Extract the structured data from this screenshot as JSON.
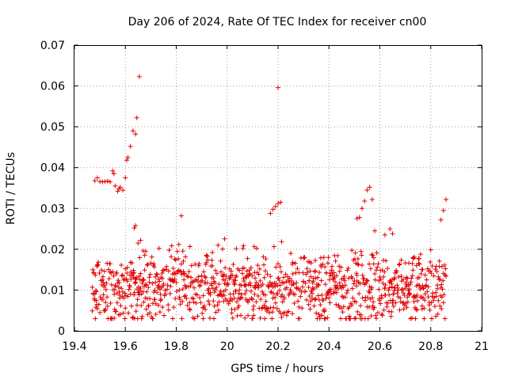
{
  "chart_data": {
    "type": "scatter",
    "title": "Day 206 of 2024, Rate Of TEC Index for receiver cn00",
    "xlabel": "GPS time / hours",
    "ylabel": "ROTI / TECUs",
    "xlim": [
      19.4,
      21.0
    ],
    "ylim": [
      0,
      0.07
    ],
    "xticks": [
      19.4,
      19.6,
      19.8,
      20.0,
      20.2,
      20.4,
      20.6,
      20.8,
      21.0
    ],
    "xtick_labels": [
      "19.4",
      "19.6",
      "19.8",
      "20",
      "20.2",
      "20.4",
      "20.6",
      "20.8",
      "21"
    ],
    "yticks": [
      0,
      0.01,
      0.02,
      0.03,
      0.04,
      0.05,
      0.06,
      0.07
    ],
    "ytick_labels": [
      "0",
      "0.01",
      "0.02",
      "0.03",
      "0.04",
      "0.05",
      "0.06",
      "0.07"
    ],
    "grid": true,
    "marker": "+",
    "marker_color": "#e00000",
    "outlier_points": [
      {
        "x": 19.48,
        "y": 0.0368
      },
      {
        "x": 19.49,
        "y": 0.0375
      },
      {
        "x": 19.5,
        "y": 0.0366
      },
      {
        "x": 19.51,
        "y": 0.0365
      },
      {
        "x": 19.52,
        "y": 0.0366
      },
      {
        "x": 19.53,
        "y": 0.0367
      },
      {
        "x": 19.54,
        "y": 0.0365
      },
      {
        "x": 19.55,
        "y": 0.0392
      },
      {
        "x": 19.555,
        "y": 0.0385
      },
      {
        "x": 19.56,
        "y": 0.0355
      },
      {
        "x": 19.57,
        "y": 0.0342
      },
      {
        "x": 19.575,
        "y": 0.0348
      },
      {
        "x": 19.58,
        "y": 0.0352
      },
      {
        "x": 19.59,
        "y": 0.0345
      },
      {
        "x": 19.6,
        "y": 0.0375
      },
      {
        "x": 19.605,
        "y": 0.0418
      },
      {
        "x": 19.61,
        "y": 0.0425
      },
      {
        "x": 19.62,
        "y": 0.0452
      },
      {
        "x": 19.63,
        "y": 0.049
      },
      {
        "x": 19.64,
        "y": 0.0482
      },
      {
        "x": 19.645,
        "y": 0.0522
      },
      {
        "x": 19.655,
        "y": 0.0623
      },
      {
        "x": 19.635,
        "y": 0.0252
      },
      {
        "x": 19.64,
        "y": 0.0258
      },
      {
        "x": 19.65,
        "y": 0.0215
      },
      {
        "x": 19.66,
        "y": 0.0222
      },
      {
        "x": 19.67,
        "y": 0.0196
      },
      {
        "x": 19.68,
        "y": 0.0195
      },
      {
        "x": 19.82,
        "y": 0.0282
      },
      {
        "x": 20.19,
        "y": 0.0305
      },
      {
        "x": 20.2,
        "y": 0.0312
      },
      {
        "x": 20.21,
        "y": 0.0315
      },
      {
        "x": 20.18,
        "y": 0.0298
      },
      {
        "x": 20.17,
        "y": 0.0288
      },
      {
        "x": 20.2,
        "y": 0.0596
      },
      {
        "x": 20.51,
        "y": 0.0275
      },
      {
        "x": 20.52,
        "y": 0.0278
      },
      {
        "x": 20.53,
        "y": 0.03
      },
      {
        "x": 20.54,
        "y": 0.0318
      },
      {
        "x": 20.55,
        "y": 0.0345
      },
      {
        "x": 20.56,
        "y": 0.0352
      },
      {
        "x": 20.57,
        "y": 0.0322
      },
      {
        "x": 20.58,
        "y": 0.0245
      },
      {
        "x": 20.62,
        "y": 0.0235
      },
      {
        "x": 20.64,
        "y": 0.025
      },
      {
        "x": 20.65,
        "y": 0.0238
      },
      {
        "x": 20.84,
        "y": 0.0272
      },
      {
        "x": 20.85,
        "y": 0.0295
      },
      {
        "x": 20.86,
        "y": 0.0322
      }
    ],
    "bulk_series": {
      "description": "dense band of samples",
      "x_range": [
        19.47,
        20.86
      ],
      "x_step": 0.002,
      "y_center": 0.01,
      "y_spread": 0.005,
      "y_upper_envelope": [
        {
          "x": 19.47,
          "y": 0.017
        },
        {
          "x": 19.6,
          "y": 0.016
        },
        {
          "x": 19.8,
          "y": 0.024
        },
        {
          "x": 19.9,
          "y": 0.018
        },
        {
          "x": 20.0,
          "y": 0.025
        },
        {
          "x": 20.1,
          "y": 0.022
        },
        {
          "x": 20.15,
          "y": 0.025
        },
        {
          "x": 20.3,
          "y": 0.018
        },
        {
          "x": 20.4,
          "y": 0.018
        },
        {
          "x": 20.5,
          "y": 0.02
        },
        {
          "x": 20.6,
          "y": 0.019
        },
        {
          "x": 20.7,
          "y": 0.017
        },
        {
          "x": 20.8,
          "y": 0.02
        },
        {
          "x": 20.86,
          "y": 0.016
        }
      ],
      "y_min": 0.003
    }
  }
}
